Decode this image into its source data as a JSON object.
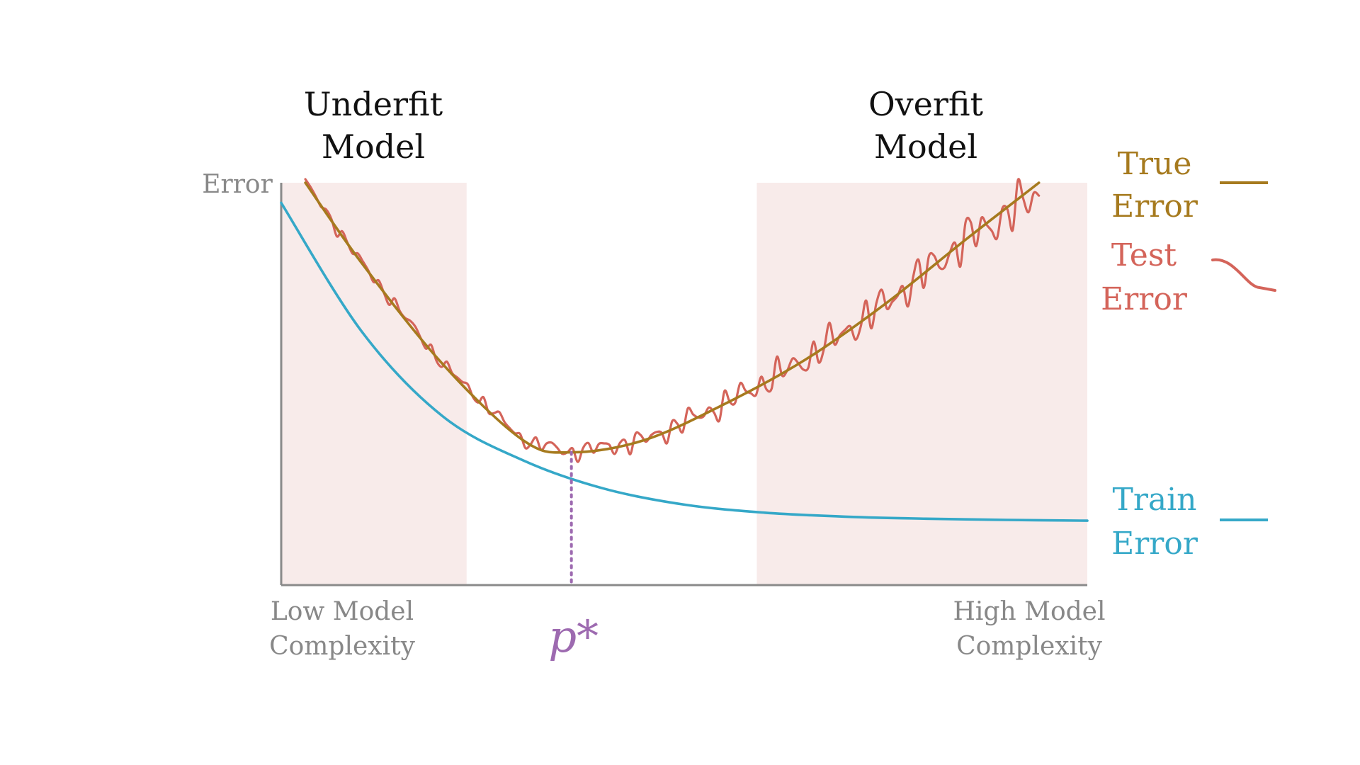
{
  "regions": {
    "underfit_lines": [
      "Underfit",
      "Model"
    ],
    "overfit_lines": [
      "Overfit",
      "Model"
    ]
  },
  "axes": {
    "y_label": "Error",
    "x_low_lines": [
      "Low Model",
      "Complexity"
    ],
    "x_high_lines": [
      "High Model",
      "Complexity"
    ],
    "optimum_label": "p*"
  },
  "legend": {
    "true_error_lines": [
      "True",
      "Error"
    ],
    "test_error_lines": [
      "Test",
      "Error"
    ],
    "train_error_lines": [
      "Train",
      "Error"
    ]
  },
  "colors": {
    "true_error": "#A67A1E",
    "test_error": "#D4645A",
    "train_error": "#35A8C8",
    "optimum": "#9D6AB0",
    "region_shade": "#F8EBEA",
    "axis": "#8A8A8A",
    "axis_text": "#888888",
    "heading_text": "#111111"
  },
  "chart_data": {
    "type": "line",
    "xlim": [
      0,
      1
    ],
    "ylim": [
      0,
      1
    ],
    "x_scale": "qualitative (Low → High Model Complexity)",
    "optimum_x": 0.36,
    "shaded_regions": [
      {
        "name": "Underfit Model",
        "x": [
          0,
          0.23
        ]
      },
      {
        "name": "Overfit Model",
        "x": [
          0.59,
          1
        ]
      }
    ],
    "series": [
      {
        "name": "True Error",
        "x": [
          0.03,
          0.1,
          0.2,
          0.3,
          0.36,
          0.45,
          0.55,
          0.65,
          0.75,
          0.85,
          0.94
        ],
        "y": [
          1.0,
          0.8,
          0.55,
          0.36,
          0.33,
          0.36,
          0.45,
          0.56,
          0.7,
          0.86,
          1.0
        ]
      },
      {
        "name": "Test Error",
        "x": [
          0.03,
          0.1,
          0.2,
          0.3,
          0.36,
          0.45,
          0.55,
          0.65,
          0.75,
          0.85,
          0.94
        ],
        "y": [
          1.0,
          0.8,
          0.55,
          0.36,
          0.33,
          0.36,
          0.45,
          0.56,
          0.7,
          0.86,
          0.97
        ]
      },
      {
        "name": "Train Error",
        "x": [
          0.0,
          0.1,
          0.2,
          0.3,
          0.4,
          0.5,
          0.6,
          0.7,
          0.8,
          0.9,
          1.0
        ],
        "y": [
          0.95,
          0.63,
          0.42,
          0.31,
          0.24,
          0.2,
          0.18,
          0.17,
          0.165,
          0.162,
          0.16
        ]
      }
    ]
  }
}
